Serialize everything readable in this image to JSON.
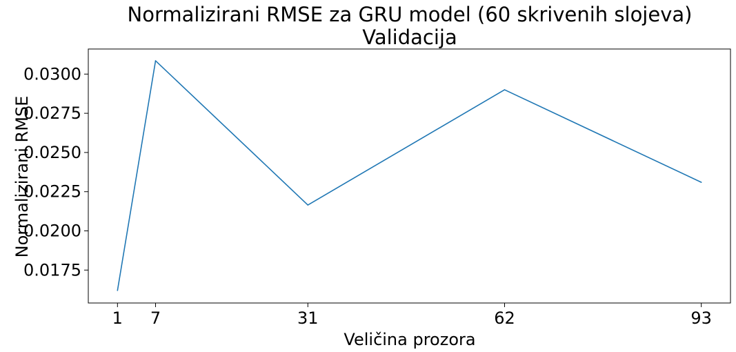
{
  "chart_data": {
    "type": "line",
    "title": "Normalizirani RMSE za GRU model (60 skrivenih slojeva)",
    "subtitle": "Validacija",
    "xlabel": "Veličina prozora",
    "ylabel": "Normalizirani RMSE",
    "x": [
      1,
      7,
      31,
      62,
      93
    ],
    "xticks": [
      "1",
      "7",
      "31",
      "62",
      "93"
    ],
    "yticks": [
      "0.0175",
      "0.0200",
      "0.0225",
      "0.0250",
      "0.0275",
      "0.0300"
    ],
    "xlim": [
      -3.6,
      97.6
    ],
    "ylim": [
      0.0154,
      0.0316
    ],
    "series": [
      {
        "values": [
          0.0162,
          0.03085,
          0.02165,
          0.029,
          0.0231
        ]
      }
    ],
    "grid": false,
    "line_color": "#1f77b4"
  }
}
